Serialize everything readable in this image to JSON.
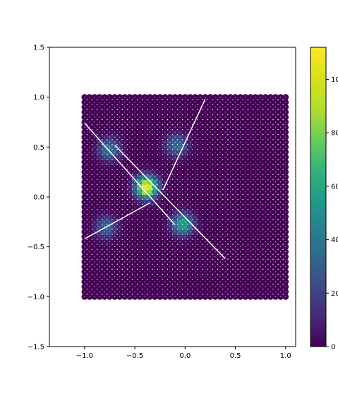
{
  "chart_data": {
    "type": "heatmap",
    "title": "",
    "xlabel": "",
    "ylabel": "",
    "xlim": [
      -1.35,
      1.1
    ],
    "ylim": [
      -1.5,
      1.5
    ],
    "x_ticks": [
      "−1.0",
      "−0.5",
      "0.0",
      "0.5",
      "1.0"
    ],
    "x_tick_values": [
      -1.0,
      -0.5,
      0.0,
      0.5,
      1.0
    ],
    "y_ticks": [
      "1.5",
      "1.0",
      "0.5",
      "0.0",
      "−0.5",
      "−1.0",
      "−1.5"
    ],
    "y_tick_values": [
      1.5,
      1.0,
      0.5,
      0.0,
      -0.5,
      -1.0,
      -1.5
    ],
    "grid": {
      "x_range": [
        -1.0,
        1.0
      ],
      "y_range": [
        -1.0,
        1.0
      ],
      "n": 41
    },
    "colormap": "viridis",
    "colorbar": {
      "min": 0,
      "max": 112,
      "ticks": [
        "0",
        "20",
        "40",
        "60",
        "80",
        "100"
      ],
      "tick_values": [
        0,
        20,
        40,
        60,
        80,
        100
      ]
    },
    "hotspots": [
      {
        "x": -0.38,
        "y": 0.1,
        "peak": 112
      },
      {
        "x": -0.02,
        "y": -0.27,
        "peak": 60
      },
      {
        "x": -0.75,
        "y": 0.48,
        "peak": 42
      },
      {
        "x": -0.08,
        "y": 0.52,
        "peak": 38
      },
      {
        "x": -0.78,
        "y": -0.3,
        "peak": 35
      }
    ],
    "lines": [
      {
        "x1": -1.0,
        "y1": 0.74,
        "x2": -0.1,
        "y2": -0.28
      },
      {
        "x1": -0.7,
        "y1": 0.52,
        "x2": 0.4,
        "y2": -0.62
      },
      {
        "x1": -1.0,
        "y1": -0.42,
        "x2": -0.35,
        "y2": -0.06
      },
      {
        "x1": -0.22,
        "y1": 0.07,
        "x2": 0.2,
        "y2": 0.98
      }
    ]
  }
}
